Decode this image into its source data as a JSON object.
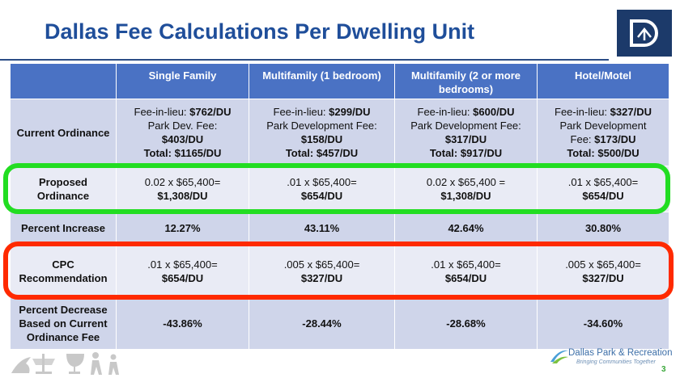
{
  "header": {
    "title": "Dallas Fee Calculations Per Dwelling Unit"
  },
  "table": {
    "columns": [
      "Single Family",
      "Multifamily (1 bedroom)",
      "Multifamily (2 or more bedrooms)",
      "Hotel/Motel"
    ],
    "rows": [
      {
        "label": "Current Ordinance",
        "cells": [
          {
            "lines": [
              {
                "plain": "Fee-in-lieu: ",
                "bold": "$762/DU"
              },
              {
                "plain": "Park Dev. Fee:"
              },
              {
                "bold": "$403/DU"
              },
              {
                "bold": "Total: $1165/DU"
              }
            ]
          },
          {
            "lines": [
              {
                "plain": "Fee-in-lieu: ",
                "bold": "$299/DU"
              },
              {
                "plain": "Park Development Fee:"
              },
              {
                "bold": "$158/DU"
              },
              {
                "bold": "Total: $457/DU"
              }
            ]
          },
          {
            "lines": [
              {
                "plain": "Fee-in-lieu: ",
                "bold": "$600/DU"
              },
              {
                "plain": "Park Development Fee:"
              },
              {
                "bold": "$317/DU"
              },
              {
                "bold": "Total: $917/DU"
              }
            ]
          },
          {
            "lines": [
              {
                "plain": "Fee-in-lieu: ",
                "bold": "$327/DU"
              },
              {
                "plain": "Park Development"
              },
              {
                "plain": "Fee: ",
                "bold": "$173/DU"
              },
              {
                "bold": "Total: $500/DU"
              }
            ]
          }
        ]
      },
      {
        "label": "Proposed Ordinance",
        "cells": [
          {
            "lines": [
              {
                "plain": "0.02 x $65,400="
              },
              {
                "bold": "$1,308/DU"
              }
            ]
          },
          {
            "lines": [
              {
                "plain": ".01 x $65,400="
              },
              {
                "bold": "$654/DU"
              }
            ]
          },
          {
            "lines": [
              {
                "plain": "0.02 x $65,400 ="
              },
              {
                "bold": "$1,308/DU"
              }
            ]
          },
          {
            "lines": [
              {
                "plain": ".01 x $65,400="
              },
              {
                "bold": "$654/DU"
              }
            ]
          }
        ]
      },
      {
        "label": "Percent Increase",
        "cells": [
          {
            "lines": [
              {
                "bold": "12.27%"
              }
            ]
          },
          {
            "lines": [
              {
                "bold": "43.11%"
              }
            ]
          },
          {
            "lines": [
              {
                "bold": "42.64%"
              }
            ]
          },
          {
            "lines": [
              {
                "bold": "30.80%"
              }
            ]
          }
        ]
      },
      {
        "label": "CPC Recommendation",
        "cells": [
          {
            "lines": [
              {
                "plain": ".01 x $65,400="
              },
              {
                "bold": "$654/DU"
              }
            ]
          },
          {
            "lines": [
              {
                "plain": ".005 x $65,400="
              },
              {
                "bold": "$327/DU"
              }
            ]
          },
          {
            "lines": [
              {
                "plain": ".01 x $65,400="
              },
              {
                "bold": "$654/DU"
              }
            ]
          },
          {
            "lines": [
              {
                "plain": ".005 x $65,400="
              },
              {
                "bold": "$327/DU"
              }
            ]
          }
        ]
      },
      {
        "label": "Percent Decrease Based on Current Ordinance Fee",
        "cells": [
          {
            "lines": [
              {
                "bold": "-43.86%"
              }
            ]
          },
          {
            "lines": [
              {
                "bold": "-28.44%"
              }
            ]
          },
          {
            "lines": [
              {
                "bold": "-28.68%"
              }
            ]
          },
          {
            "lines": [
              {
                "bold": "-34.60%"
              }
            ]
          }
        ]
      }
    ]
  },
  "footer": {
    "brand": "Dallas Park & Recreation",
    "tagline": "Bringing Communities Together",
    "page": "3"
  }
}
